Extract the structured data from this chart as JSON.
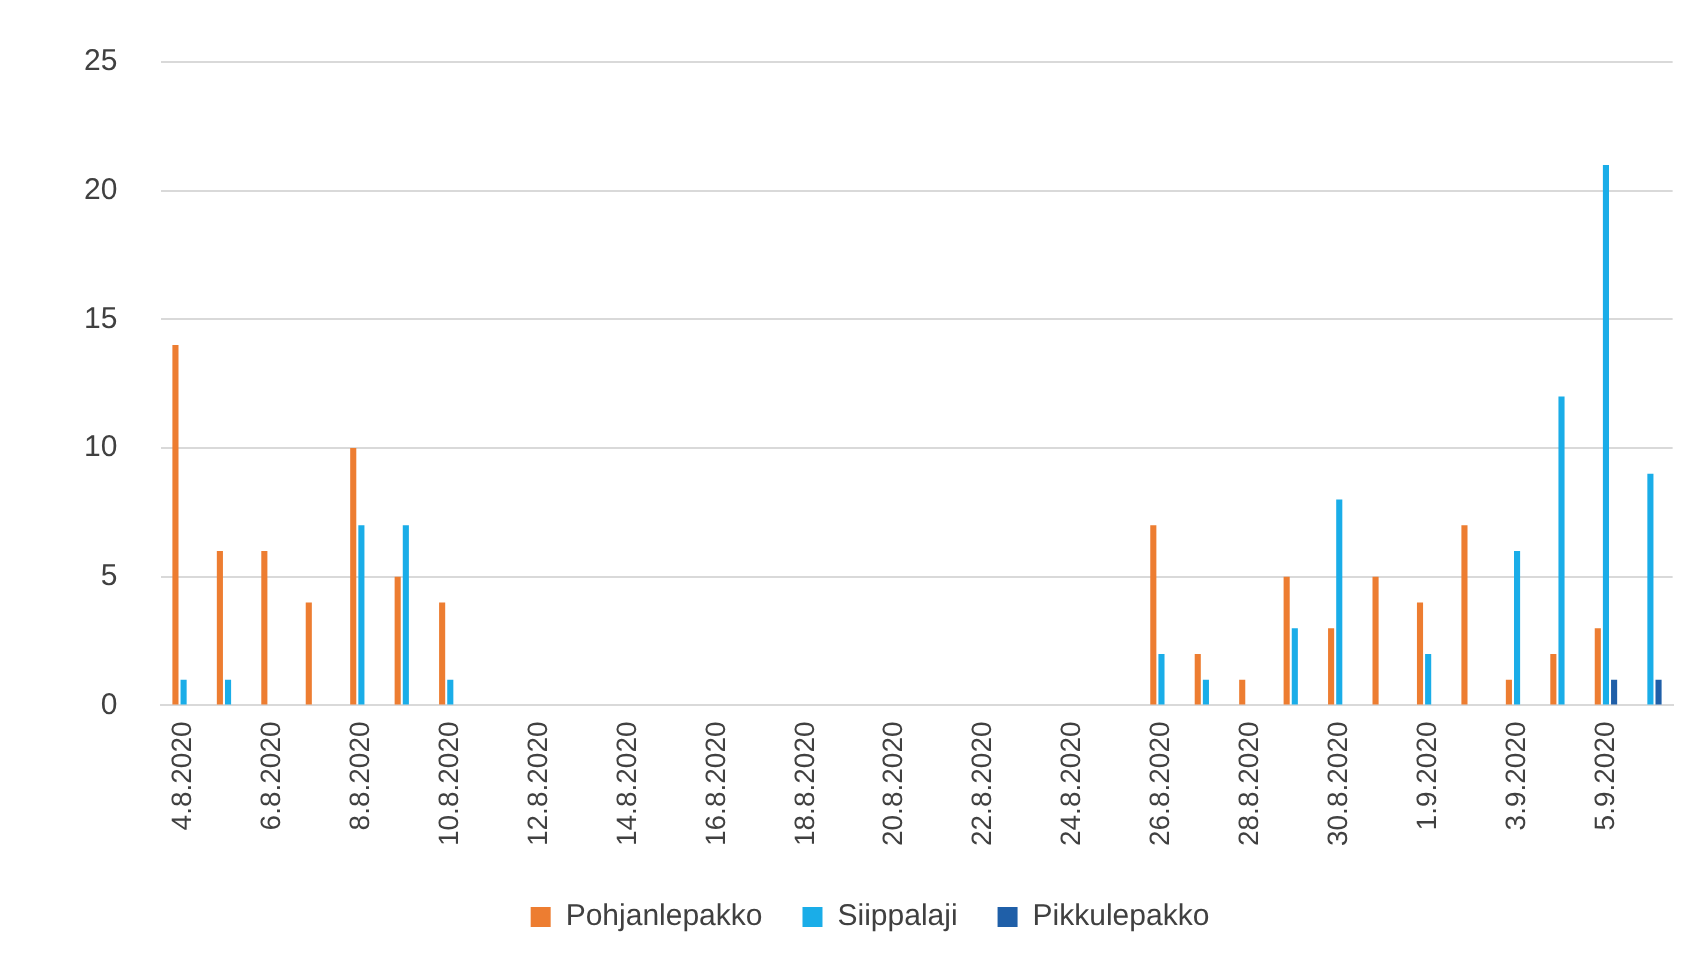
{
  "chart_data": {
    "type": "bar",
    "categories": [
      "4.8.2020",
      null,
      "6.8.2020",
      null,
      "8.8.2020",
      null,
      "10.8.2020",
      null,
      "12.8.2020",
      null,
      "14.8.2020",
      null,
      "16.8.2020",
      null,
      "18.8.2020",
      null,
      "20.8.2020",
      null,
      "22.8.2020",
      null,
      "24.8.2020",
      null,
      "26.8.2020",
      null,
      "28.8.2020",
      null,
      "30.8.2020",
      null,
      "1.9.2020",
      null,
      "3.9.2020",
      null,
      "5.9.2020",
      null
    ],
    "series": [
      {
        "name": "Pohjanlepakko",
        "color": "#ed7d31",
        "values": [
          14,
          6,
          6,
          4,
          10,
          5,
          4,
          0,
          0,
          0,
          0,
          0,
          0,
          0,
          0,
          0,
          0,
          0,
          0,
          0,
          0,
          0,
          7,
          2,
          1,
          5,
          3,
          5,
          4,
          7,
          1,
          2,
          3,
          0
        ]
      },
      {
        "name": "Siippalaji",
        "color": "#1aade8",
        "values": [
          1,
          1,
          0,
          0,
          7,
          7,
          1,
          0,
          0,
          0,
          0,
          0,
          0,
          0,
          0,
          0,
          0,
          0,
          0,
          0,
          0,
          0,
          2,
          1,
          0,
          3,
          8,
          0,
          2,
          0,
          6,
          12,
          21,
          9
        ]
      },
      {
        "name": "Pikkulepakko",
        "color": "#1f5fa8",
        "values": [
          0,
          0,
          0,
          0,
          0,
          0,
          0,
          0,
          0,
          0,
          0,
          0,
          0,
          0,
          0,
          0,
          0,
          0,
          0,
          0,
          0,
          0,
          0,
          0,
          0,
          0,
          0,
          0,
          0,
          0,
          0,
          0,
          1,
          1
        ]
      }
    ],
    "ylim": [
      0,
      25
    ],
    "yticks": [
      0,
      5,
      10,
      15,
      20,
      25
    ],
    "grid": "y",
    "legend": "bottom"
  }
}
